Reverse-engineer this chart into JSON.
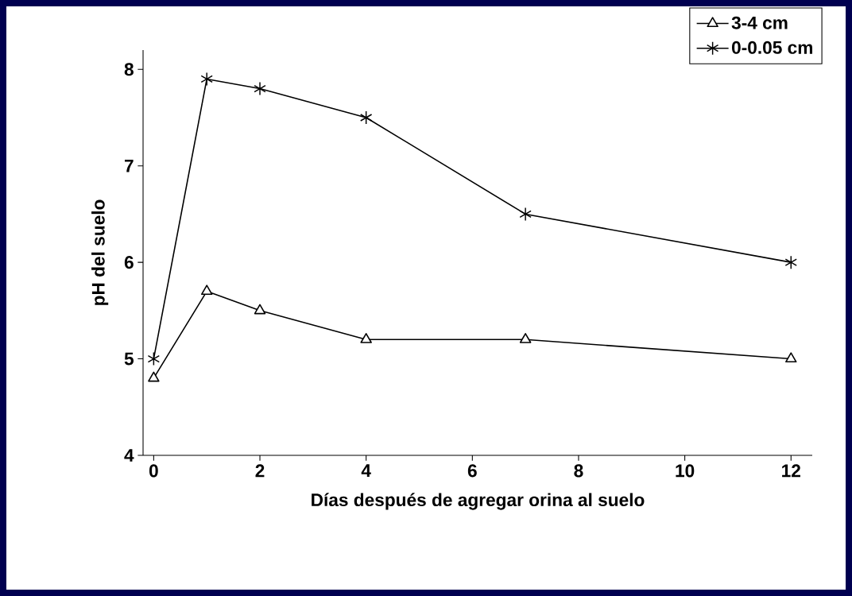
{
  "chart_data": {
    "type": "line",
    "xlabel": "Días después de agregar orina al suelo",
    "ylabel": "pH del suelo",
    "x": [
      0,
      1,
      2,
      4,
      7,
      12
    ],
    "series": [
      {
        "name": "3-4 cm",
        "color": "#000000",
        "marker": "triangle",
        "values": [
          4.8,
          5.7,
          5.5,
          5.2,
          5.2,
          5.0
        ]
      },
      {
        "name": "0-0.05 cm",
        "color": "#000000",
        "marker": "cross",
        "values": [
          5.0,
          7.9,
          7.8,
          7.5,
          6.5,
          6.0
        ]
      }
    ],
    "xlim": [
      -0.2,
      12.4
    ],
    "ylim": [
      4,
      8.2
    ],
    "xticks": [
      0,
      2,
      4,
      6,
      8,
      10,
      12
    ],
    "yticks": [
      4,
      5,
      6,
      7,
      8
    ],
    "grid": false,
    "legend": "top right",
    "line_style": "solid"
  }
}
